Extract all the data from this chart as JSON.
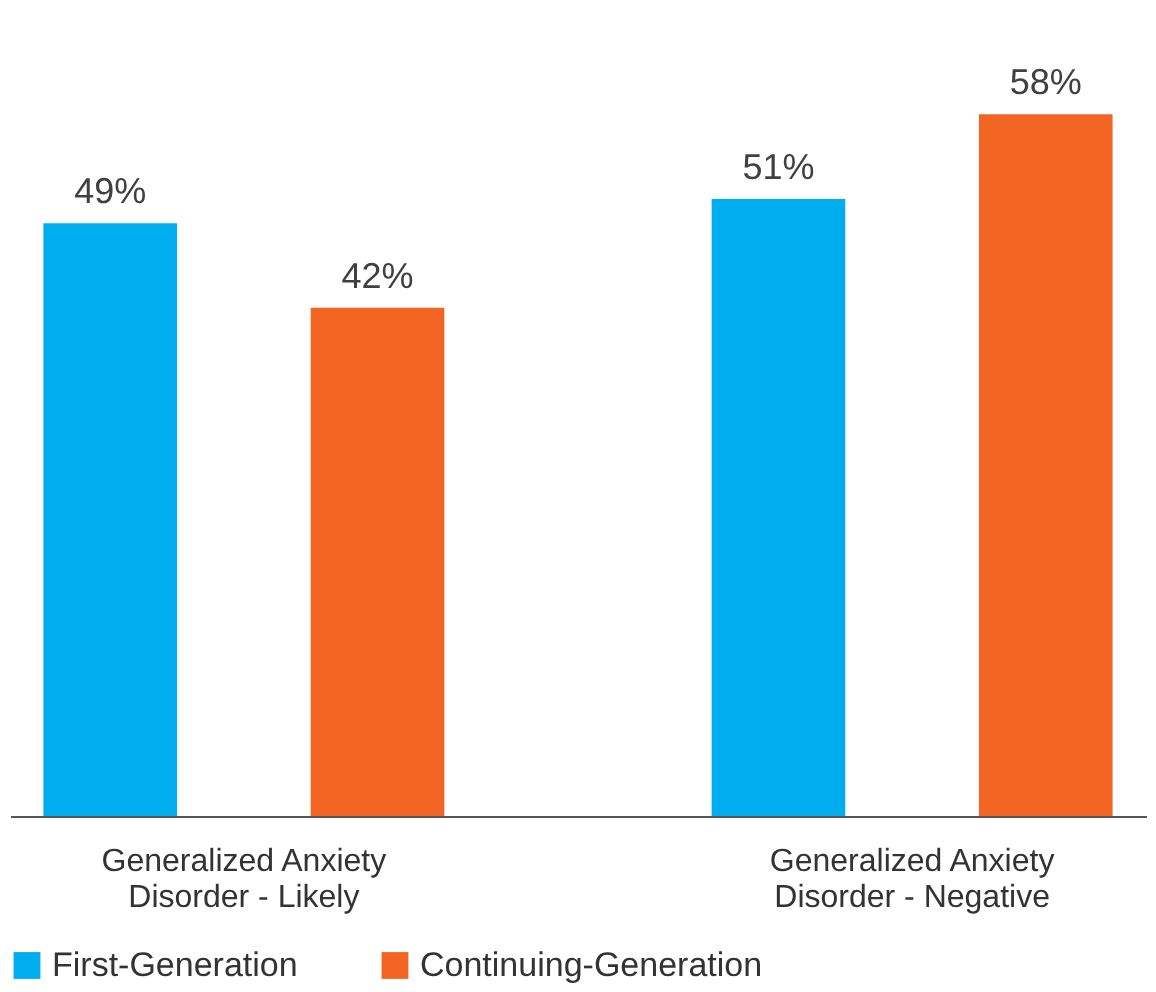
{
  "chart_data": {
    "type": "bar",
    "categories": [
      "Generalized Anxiety Disorder - Likely",
      "Generalized Anxiety Disorder - Negative"
    ],
    "series": [
      {
        "name": "First-Generation",
        "color": "#00aeef",
        "values": [
          49,
          51
        ],
        "value_labels": [
          "49%",
          "51%"
        ]
      },
      {
        "name": "Continuing-Generation",
        "color": "#f26522",
        "values": [
          42,
          58
        ],
        "value_labels": [
          "42%",
          "58%"
        ]
      }
    ],
    "legend": "bottom"
  }
}
